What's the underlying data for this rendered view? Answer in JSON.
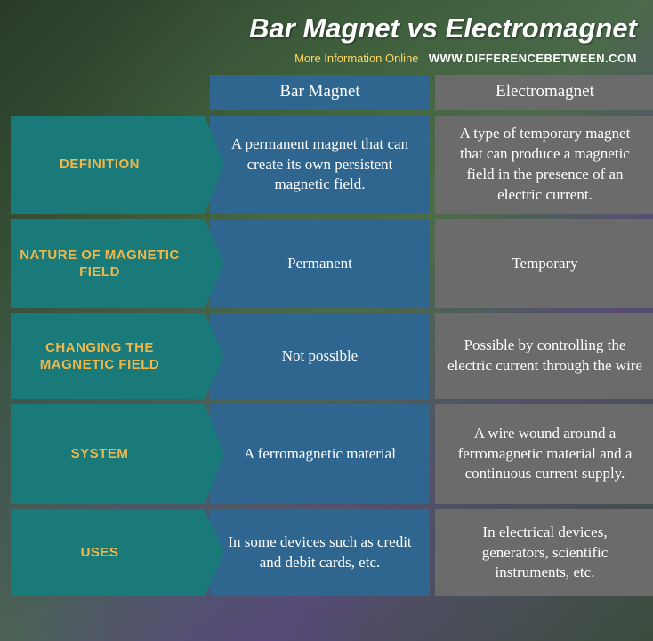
{
  "title": "Bar Magnet vs Electromagnet",
  "subtitle": {
    "more": "More Information  Online",
    "url": "WWW.DIFFERENCEBETWEEN.COM"
  },
  "headers": {
    "col1": "Bar Magnet",
    "col2": "Electromagnet"
  },
  "rows": [
    {
      "label": "DEFINITION",
      "col1": "A permanent magnet that can create its own persistent magnetic field.",
      "col2": "A type of temporary magnet that can produce a magnetic field in the presence of an electric current.",
      "h": "row-h-110"
    },
    {
      "label": "NATURE OF MAGNETIC FIELD",
      "col1": "Permanent",
      "col2": "Temporary",
      "h": "row-h-100"
    },
    {
      "label": "CHANGING THE MAGNETIC FIELD",
      "col1": "Not possible",
      "col2": "Possible by controlling the electric current through the wire",
      "h": "row-h-96"
    },
    {
      "label": "SYSTEM",
      "col1": "A ferromagnetic material",
      "col2": "A wire wound around a ferromagnetic material and a continuous current supply.",
      "h": "row-h-112"
    },
    {
      "label": "USES",
      "col1": "In some devices such as credit and debit cards, etc.",
      "col2": "In electrical devices, generators, scientific instruments, etc.",
      "h": "row-h-98"
    }
  ],
  "colors": {
    "teal": "#1a7a7a",
    "blue": "#2f6690",
    "gray": "#6b6b6b",
    "label_text": "#f0b84a",
    "content_text": "#ffffff"
  }
}
